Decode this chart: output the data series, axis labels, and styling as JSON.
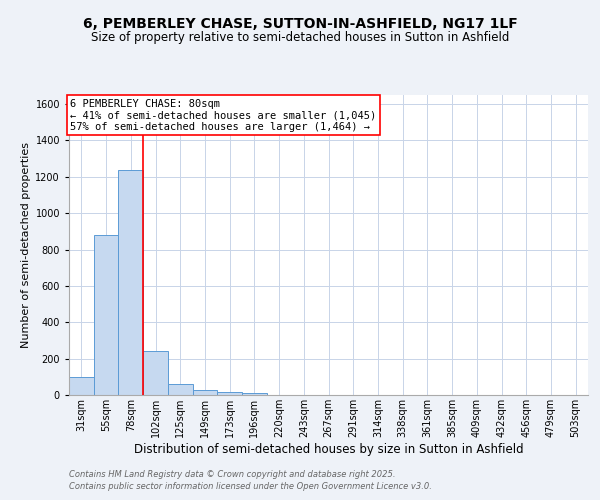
{
  "title": "6, PEMBERLEY CHASE, SUTTON-IN-ASHFIELD, NG17 1LF",
  "subtitle": "Size of property relative to semi-detached houses in Sutton in Ashfield",
  "xlabel": "Distribution of semi-detached houses by size in Sutton in Ashfield",
  "ylabel": "Number of semi-detached properties",
  "categories": [
    "31sqm",
    "55sqm",
    "78sqm",
    "102sqm",
    "125sqm",
    "149sqm",
    "173sqm",
    "196sqm",
    "220sqm",
    "243sqm",
    "267sqm",
    "291sqm",
    "314sqm",
    "338sqm",
    "361sqm",
    "385sqm",
    "409sqm",
    "432sqm",
    "456sqm",
    "479sqm",
    "503sqm"
  ],
  "values": [
    100,
    880,
    1240,
    240,
    60,
    25,
    15,
    10,
    0,
    0,
    0,
    0,
    0,
    0,
    0,
    0,
    0,
    0,
    0,
    0,
    0
  ],
  "bar_color": "#c6d9f0",
  "bar_edge_color": "#5b9bd5",
  "red_line_x": 2.5,
  "red_line_label": "6 PEMBERLEY CHASE: 80sqm",
  "annotation_line1": "← 41% of semi-detached houses are smaller (1,045)",
  "annotation_line2": "57% of semi-detached houses are larger (1,464) →",
  "ylim": [
    0,
    1650
  ],
  "yticks": [
    0,
    200,
    400,
    600,
    800,
    1000,
    1200,
    1400,
    1600
  ],
  "background_color": "#eef2f8",
  "plot_background": "#ffffff",
  "grid_color": "#c8d4e8",
  "footer_line1": "Contains HM Land Registry data © Crown copyright and database right 2025.",
  "footer_line2": "Contains public sector information licensed under the Open Government Licence v3.0.",
  "title_fontsize": 10,
  "subtitle_fontsize": 8.5,
  "xlabel_fontsize": 8.5,
  "ylabel_fontsize": 8,
  "tick_fontsize": 7,
  "footer_fontsize": 6,
  "annotation_fontsize": 7.5
}
